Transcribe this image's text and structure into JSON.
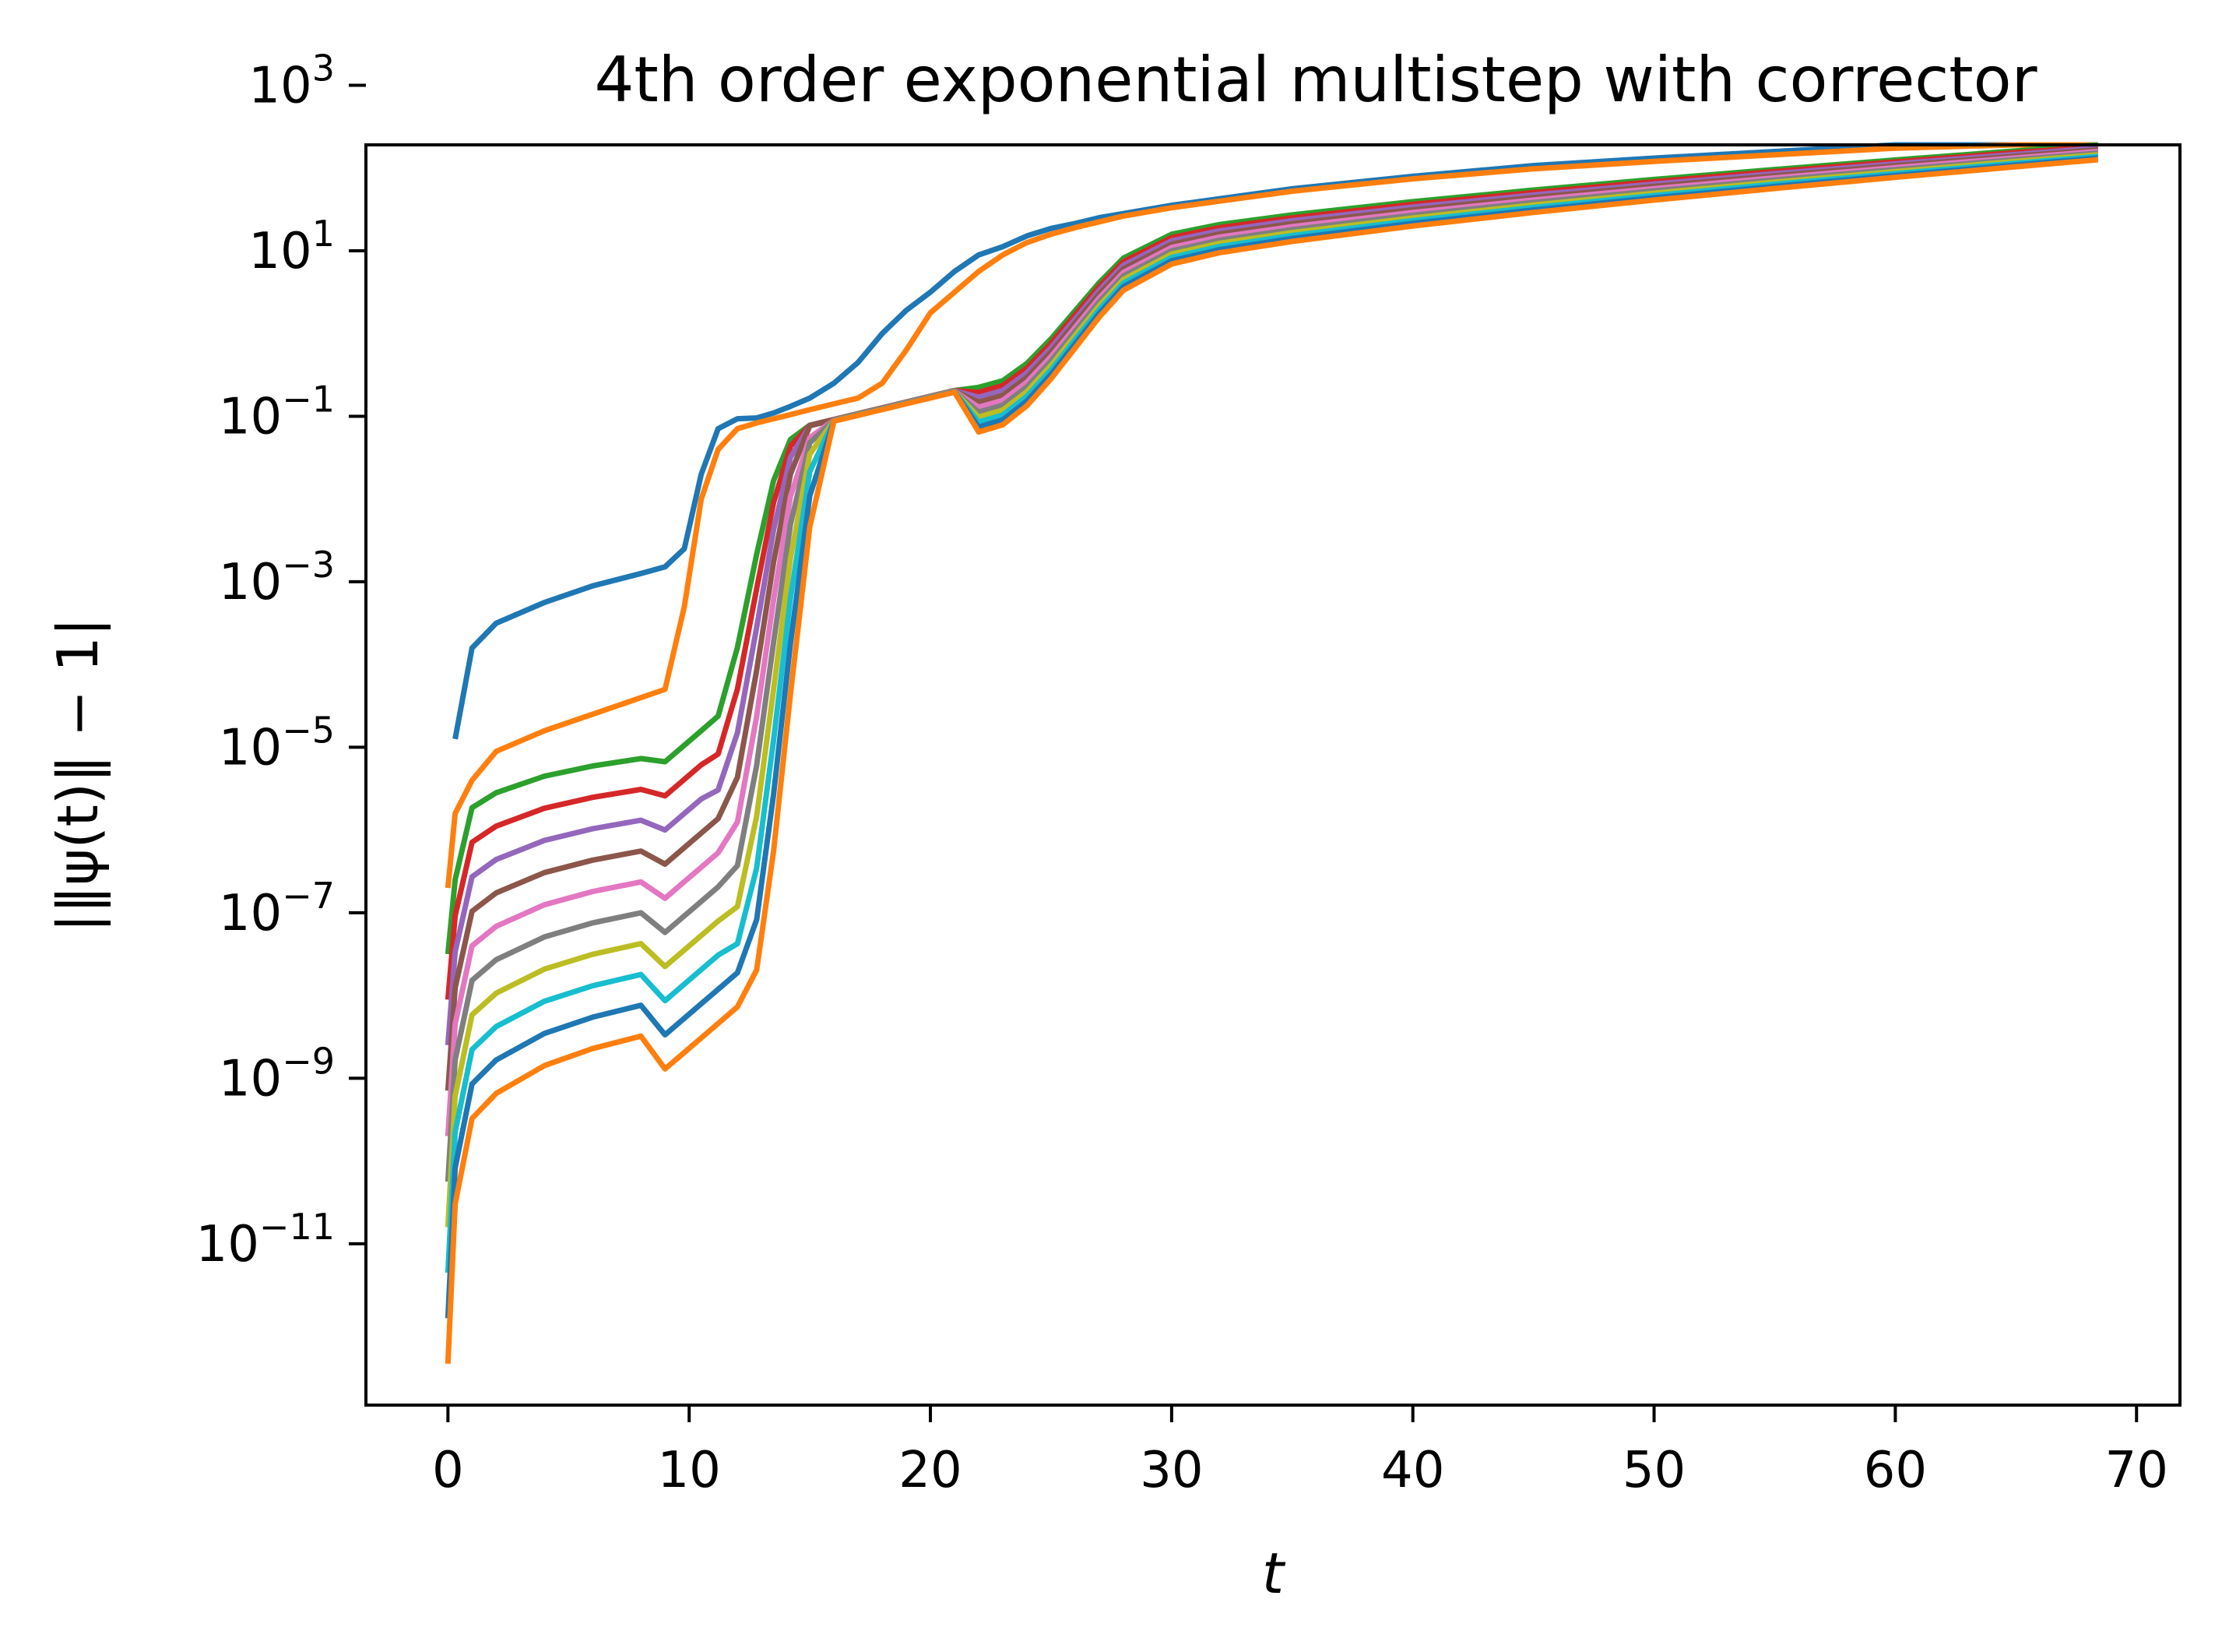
{
  "chart_data": {
    "type": "line",
    "title": "4th order exponential multistep with corrector",
    "xlabel": "t",
    "ylabel": "|‖ψ(t)‖ − 1|",
    "xscale": "linear",
    "yscale": "log",
    "xlim": [
      -3.4,
      71.8
    ],
    "ylim_log10": [
      -12.95,
      2.28
    ],
    "xticks": [
      0,
      10,
      20,
      30,
      40,
      50,
      60,
      70
    ],
    "xtick_labels": [
      "0",
      "10",
      "20",
      "30",
      "40",
      "50",
      "60",
      "70"
    ],
    "yticks_log10": [
      -11,
      -9,
      -7,
      -5,
      -3,
      -1,
      1,
      3
    ],
    "ytick_labels": [
      {
        "base": "10",
        "exp": "−11"
      },
      {
        "base": "10",
        "exp": "−9"
      },
      {
        "base": "10",
        "exp": "−7"
      },
      {
        "base": "10",
        "exp": "−5"
      },
      {
        "base": "10",
        "exp": "−3"
      },
      {
        "base": "10",
        "exp": "−1"
      },
      {
        "base": "10",
        "exp": "1"
      },
      {
        "base": "10",
        "exp": "3"
      }
    ],
    "grid": false,
    "legend": false,
    "x": [
      0.0,
      0.3,
      1,
      2,
      4,
      6,
      8,
      9,
      9.8,
      10.5,
      11.2,
      12.0,
      12.8,
      13.5,
      14.2,
      15,
      16,
      17,
      18,
      19,
      20,
      21,
      22,
      23,
      24,
      25,
      26,
      27,
      28,
      30,
      32,
      35,
      40,
      45,
      50,
      55,
      60,
      65,
      68.4
    ],
    "series": [
      {
        "color": "#1f77b4",
        "x0": 0.3,
        "shift": 0,
        "plateau_log10": -2.75,
        "pre_log10": -4.9,
        "log10_values": [
          -4.9,
          -4.9,
          -3.8,
          -3.5,
          -3.25,
          -3.05,
          -2.9,
          -2.82,
          -2.6,
          -1.7,
          -1.15,
          -1.03,
          -1.02,
          -0.96,
          -0.88,
          -0.78,
          -0.6,
          -0.35,
          0.0,
          0.28,
          0.5,
          0.75,
          0.95,
          1.05,
          1.18,
          1.27,
          1.33,
          1.4,
          1.45,
          1.55,
          1.63,
          1.75,
          1.9,
          2.03,
          2.12,
          2.2,
          2.3,
          2.38,
          2.47
        ]
      },
      {
        "color": "#ff7f0e",
        "x0": 0.0,
        "shift": 0.4,
        "plateau_log10": -4.25,
        "pre_log10": -6.7,
        "log10_values": [
          -6.7,
          -5.8,
          -5.4,
          -5.05,
          -4.8,
          -4.6,
          -4.4,
          -4.3,
          -3.3,
          -2.0,
          -1.4,
          -1.15,
          -1.08,
          -1.03,
          -0.98,
          -0.92,
          -0.85,
          -0.78,
          -0.6,
          -0.2,
          0.25,
          0.5,
          0.75,
          0.95,
          1.1,
          1.2,
          1.28,
          1.35,
          1.42,
          1.52,
          1.6,
          1.72,
          1.87,
          1.99,
          2.08,
          2.16,
          2.24,
          2.32,
          2.4
        ]
      },
      {
        "color": "#2ca02c",
        "x0": 0.0,
        "shift": 0.7
      },
      {
        "color": "#d62728",
        "x0": 0.0,
        "shift": 1.0
      },
      {
        "color": "#9467bd",
        "x0": 0.0,
        "shift": 1.3
      },
      {
        "color": "#8c564b",
        "x0": 0.0,
        "shift": 1.6
      },
      {
        "color": "#e377c2",
        "x0": 0.0,
        "shift": 1.9
      },
      {
        "color": "#7f7f7f",
        "x0": 0.0,
        "shift": 2.2
      },
      {
        "color": "#bcbd22",
        "x0": 0.0,
        "shift": 2.5
      },
      {
        "color": "#17becf",
        "x0": 0.0,
        "shift": 2.8
      },
      {
        "color": "#1f77b4",
        "x0": 0.0,
        "shift": 3.0
      },
      {
        "color": "#ff7f0e",
        "x0": 0.0,
        "shift": 3.2
      }
    ]
  }
}
